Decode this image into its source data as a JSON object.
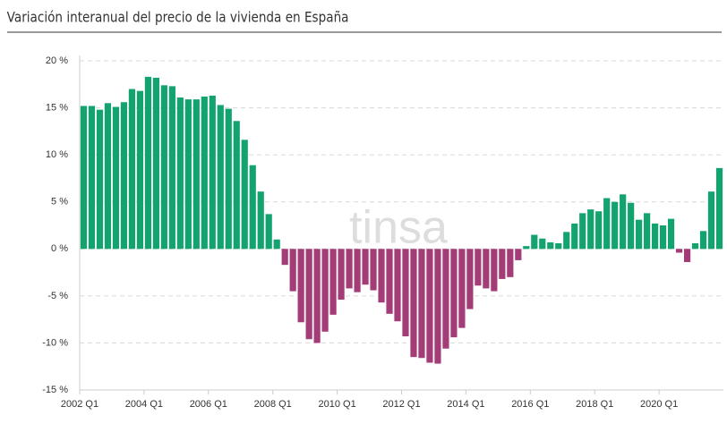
{
  "chart_data": {
    "type": "bar",
    "title": "Variación interanual del precio de la vivienda en España",
    "watermark": "tinsa",
    "categories": [
      "2002 Q1",
      null,
      null,
      null,
      null,
      null,
      null,
      null,
      "2004 Q1",
      null,
      null,
      null,
      null,
      null,
      null,
      null,
      "2006 Q1",
      null,
      null,
      null,
      null,
      null,
      null,
      null,
      "2008 Q1",
      null,
      null,
      null,
      null,
      null,
      null,
      null,
      "2010 Q1",
      null,
      null,
      null,
      null,
      null,
      null,
      null,
      "2012 Q1",
      null,
      null,
      null,
      null,
      null,
      null,
      null,
      "2014 Q1",
      null,
      null,
      null,
      null,
      null,
      null,
      null,
      "2016 Q1",
      null,
      null,
      null,
      null,
      null,
      null,
      null,
      "2018 Q1",
      null,
      null,
      null,
      null,
      null,
      null,
      null,
      "2020 Q1",
      null,
      null,
      null,
      null,
      null,
      null,
      null
    ],
    "values": [
      15.2,
      15.2,
      14.8,
      15.5,
      15.1,
      15.6,
      17.0,
      16.8,
      18.3,
      18.2,
      17.4,
      17.3,
      16.1,
      15.9,
      15.9,
      16.2,
      16.3,
      15.3,
      14.9,
      13.6,
      11.6,
      8.9,
      6.1,
      3.7,
      1.0,
      -1.7,
      -4.5,
      -7.8,
      -9.6,
      -10.0,
      -8.8,
      -7.0,
      -5.4,
      -4.2,
      -4.6,
      -3.8,
      -4.4,
      -5.7,
      -6.9,
      -7.7,
      -9.3,
      -11.5,
      -11.6,
      -12.1,
      -12.2,
      -10.6,
      -9.4,
      -8.4,
      -6.4,
      -3.9,
      -4.2,
      -4.5,
      -3.2,
      -3.0,
      -1.2,
      0.3,
      1.5,
      1.1,
      0.7,
      0.6,
      1.8,
      2.7,
      3.8,
      4.2,
      4.0,
      5.4,
      5.0,
      5.8,
      4.9,
      3.1,
      3.8,
      2.7,
      2.5,
      3.2,
      -0.4,
      -1.4,
      0.6,
      1.9,
      6.1,
      8.6
    ],
    "positive_color": "#13a36f",
    "negative_color": "#a43c78",
    "ylim": [
      -15,
      20
    ],
    "yticks": [
      {
        "value": -15,
        "label": "-15 %"
      },
      {
        "value": -10,
        "label": "-10 %"
      },
      {
        "value": -5,
        "label": "-5 %"
      },
      {
        "value": 0,
        "label": "0 %"
      },
      {
        "value": 5,
        "label": "5 %"
      },
      {
        "value": 10,
        "label": "10 %"
      },
      {
        "value": 15,
        "label": "15 %"
      },
      {
        "value": 20,
        "label": "20 %"
      }
    ],
    "grid": true
  }
}
